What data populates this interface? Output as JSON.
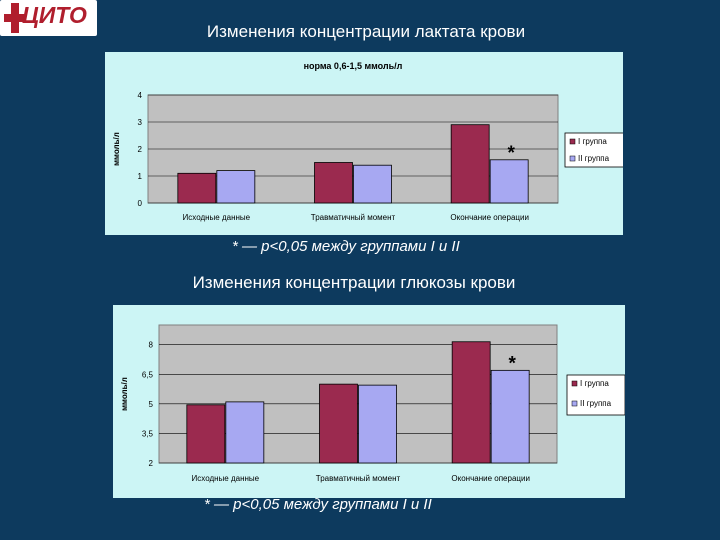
{
  "logo": {
    "text": "ЦИТО"
  },
  "charts_meta": {
    "note_1": "* — p<0,05 между группами I и II",
    "note_2": "* — p<0,05 между группами I и II"
  },
  "colors": {
    "group1": "#9b2a4f",
    "group2": "#a7a8f2",
    "plot_bg": "#c0c0c0",
    "panel_bg": "#ccf5f5",
    "page_bg": "#0d3a5e"
  },
  "chart_data": [
    {
      "type": "bar",
      "title": "Изменения концентрации лактата крови",
      "subtitle": "норма 0,6-1,5 ммоль/л",
      "ylabel": "ммоль/л",
      "xlabel": "",
      "categories": [
        "Исходные данные",
        "Травматичный момент",
        "Окончание операции"
      ],
      "series": [
        {
          "name": "I группа",
          "values": [
            1.1,
            1.5,
            2.9
          ]
        },
        {
          "name": "II группа",
          "values": [
            1.2,
            1.4,
            1.6
          ]
        }
      ],
      "ylim": [
        0,
        4
      ],
      "yticks": [
        "0",
        "1",
        "2",
        "3",
        "4"
      ],
      "ytick_values": [
        0,
        1,
        2,
        3,
        4
      ],
      "annotation": "*",
      "legend": "right",
      "grid": true
    },
    {
      "type": "bar",
      "title": "Изменения концентрации глюкозы крови",
      "subtitle": "",
      "ylabel": "ммоль/л",
      "xlabel": "",
      "categories": [
        "Исходные данные",
        "Травматичный момент",
        "Окончание операции"
      ],
      "series": [
        {
          "name": "I группа",
          "values": [
            4.95,
            6.0,
            8.15
          ]
        },
        {
          "name": "II группа",
          "values": [
            5.1,
            5.95,
            6.7
          ]
        }
      ],
      "ylim": [
        2,
        9
      ],
      "yticks": [
        "2",
        "3,5",
        "5",
        "6,5",
        "8"
      ],
      "ytick_values": [
        2,
        3.5,
        5,
        6.5,
        8
      ],
      "annotation": "*",
      "legend": "right",
      "grid": true
    }
  ]
}
